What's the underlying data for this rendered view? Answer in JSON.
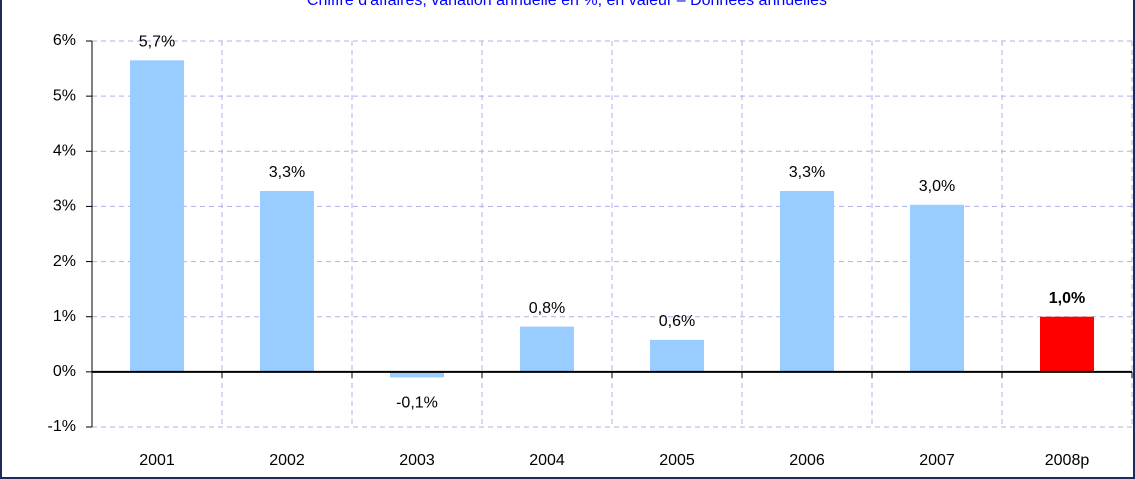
{
  "chart_data": {
    "type": "bar",
    "title": "Chiffre d'affaires, variation annuelle en %, en valeur – Données annuelles",
    "categories": [
      "2001",
      "2002",
      "2003",
      "2004",
      "2005",
      "2006",
      "2007",
      "2008p"
    ],
    "values": [
      5.65,
      3.28,
      -0.1,
      0.82,
      0.58,
      3.28,
      3.03,
      1.0
    ],
    "value_labels": [
      "5,7%",
      "3,3%",
      "-0,1%",
      "0,8%",
      "0,6%",
      "3,3%",
      "3,0%",
      "1,0%"
    ],
    "colors": [
      "#99ccff",
      "#99ccff",
      "#99ccff",
      "#99ccff",
      "#99ccff",
      "#99ccff",
      "#99ccff",
      "#ff0000"
    ],
    "label_bold": [
      false,
      false,
      false,
      false,
      false,
      false,
      false,
      true
    ],
    "ylim": [
      -1,
      6
    ],
    "yticks": [
      {
        "value": -1,
        "label": "-1%"
      },
      {
        "value": 0,
        "label": "0%"
      },
      {
        "value": 1,
        "label": "1%"
      },
      {
        "value": 2,
        "label": "2%"
      },
      {
        "value": 3,
        "label": "3%"
      },
      {
        "value": 4,
        "label": "4%"
      },
      {
        "value": 5,
        "label": "5%"
      },
      {
        "value": 6,
        "label": "6%"
      }
    ],
    "grid": true
  }
}
